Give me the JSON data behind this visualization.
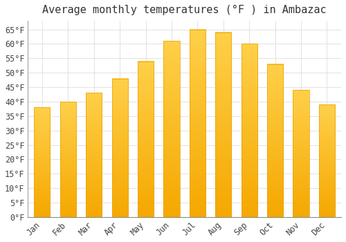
{
  "title": "Average monthly temperatures (°F ) in Ambazac",
  "months": [
    "Jan",
    "Feb",
    "Mar",
    "Apr",
    "May",
    "Jun",
    "Jul",
    "Aug",
    "Sep",
    "Oct",
    "Nov",
    "Dec"
  ],
  "values": [
    38,
    40,
    43,
    48,
    54,
    61,
    65,
    64,
    60,
    53,
    44,
    39
  ],
  "bar_color_top": "#FFD04A",
  "bar_color_bottom": "#F5A800",
  "background_color": "#FFFFFF",
  "grid_color": "#DDDDDD",
  "ylim": [
    0,
    68
  ],
  "yticks": [
    0,
    5,
    10,
    15,
    20,
    25,
    30,
    35,
    40,
    45,
    50,
    55,
    60,
    65
  ],
  "ylabel_suffix": "°F",
  "title_fontsize": 11,
  "tick_fontsize": 8.5,
  "font_family": "monospace"
}
